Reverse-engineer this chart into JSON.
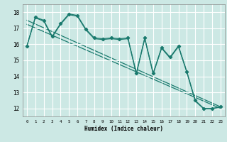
{
  "xlabel": "Humidex (Indice chaleur)",
  "ylabel": "",
  "line_color": "#1a7a6e",
  "background_color": "#cce8e4",
  "grid_color": "#ffffff",
  "xlim": [
    -0.5,
    23.5
  ],
  "ylim": [
    11.5,
    18.5
  ],
  "yticks": [
    12,
    13,
    14,
    15,
    16,
    17,
    18
  ],
  "xticks": [
    0,
    1,
    2,
    3,
    4,
    5,
    6,
    7,
    8,
    9,
    10,
    11,
    12,
    13,
    14,
    15,
    16,
    17,
    18,
    19,
    20,
    21,
    22,
    23
  ],
  "series1_x": [
    0,
    1,
    2,
    3,
    4,
    5,
    6,
    7,
    8,
    9,
    10,
    11,
    12,
    13,
    14,
    15,
    16,
    17,
    18,
    19,
    20,
    21,
    22,
    23
  ],
  "series1_y": [
    15.9,
    17.7,
    17.5,
    16.5,
    17.3,
    17.9,
    17.8,
    16.95,
    16.4,
    16.35,
    16.4,
    16.35,
    16.4,
    14.2,
    16.4,
    14.2,
    15.8,
    15.2,
    15.9,
    14.3,
    12.5,
    12.0,
    12.0,
    12.1
  ],
  "series2_y": [
    15.9,
    17.65,
    17.45,
    16.45,
    17.25,
    17.85,
    17.75,
    16.9,
    16.35,
    16.3,
    16.35,
    16.3,
    16.35,
    14.15,
    16.35,
    14.15,
    15.75,
    15.15,
    15.85,
    14.25,
    12.45,
    11.98,
    11.98,
    12.08
  ],
  "trend1_x": [
    0,
    23
  ],
  "trend1_y": [
    17.5,
    12.1
  ],
  "trend2_x": [
    0,
    23
  ],
  "trend2_y": [
    17.25,
    12.0
  ]
}
